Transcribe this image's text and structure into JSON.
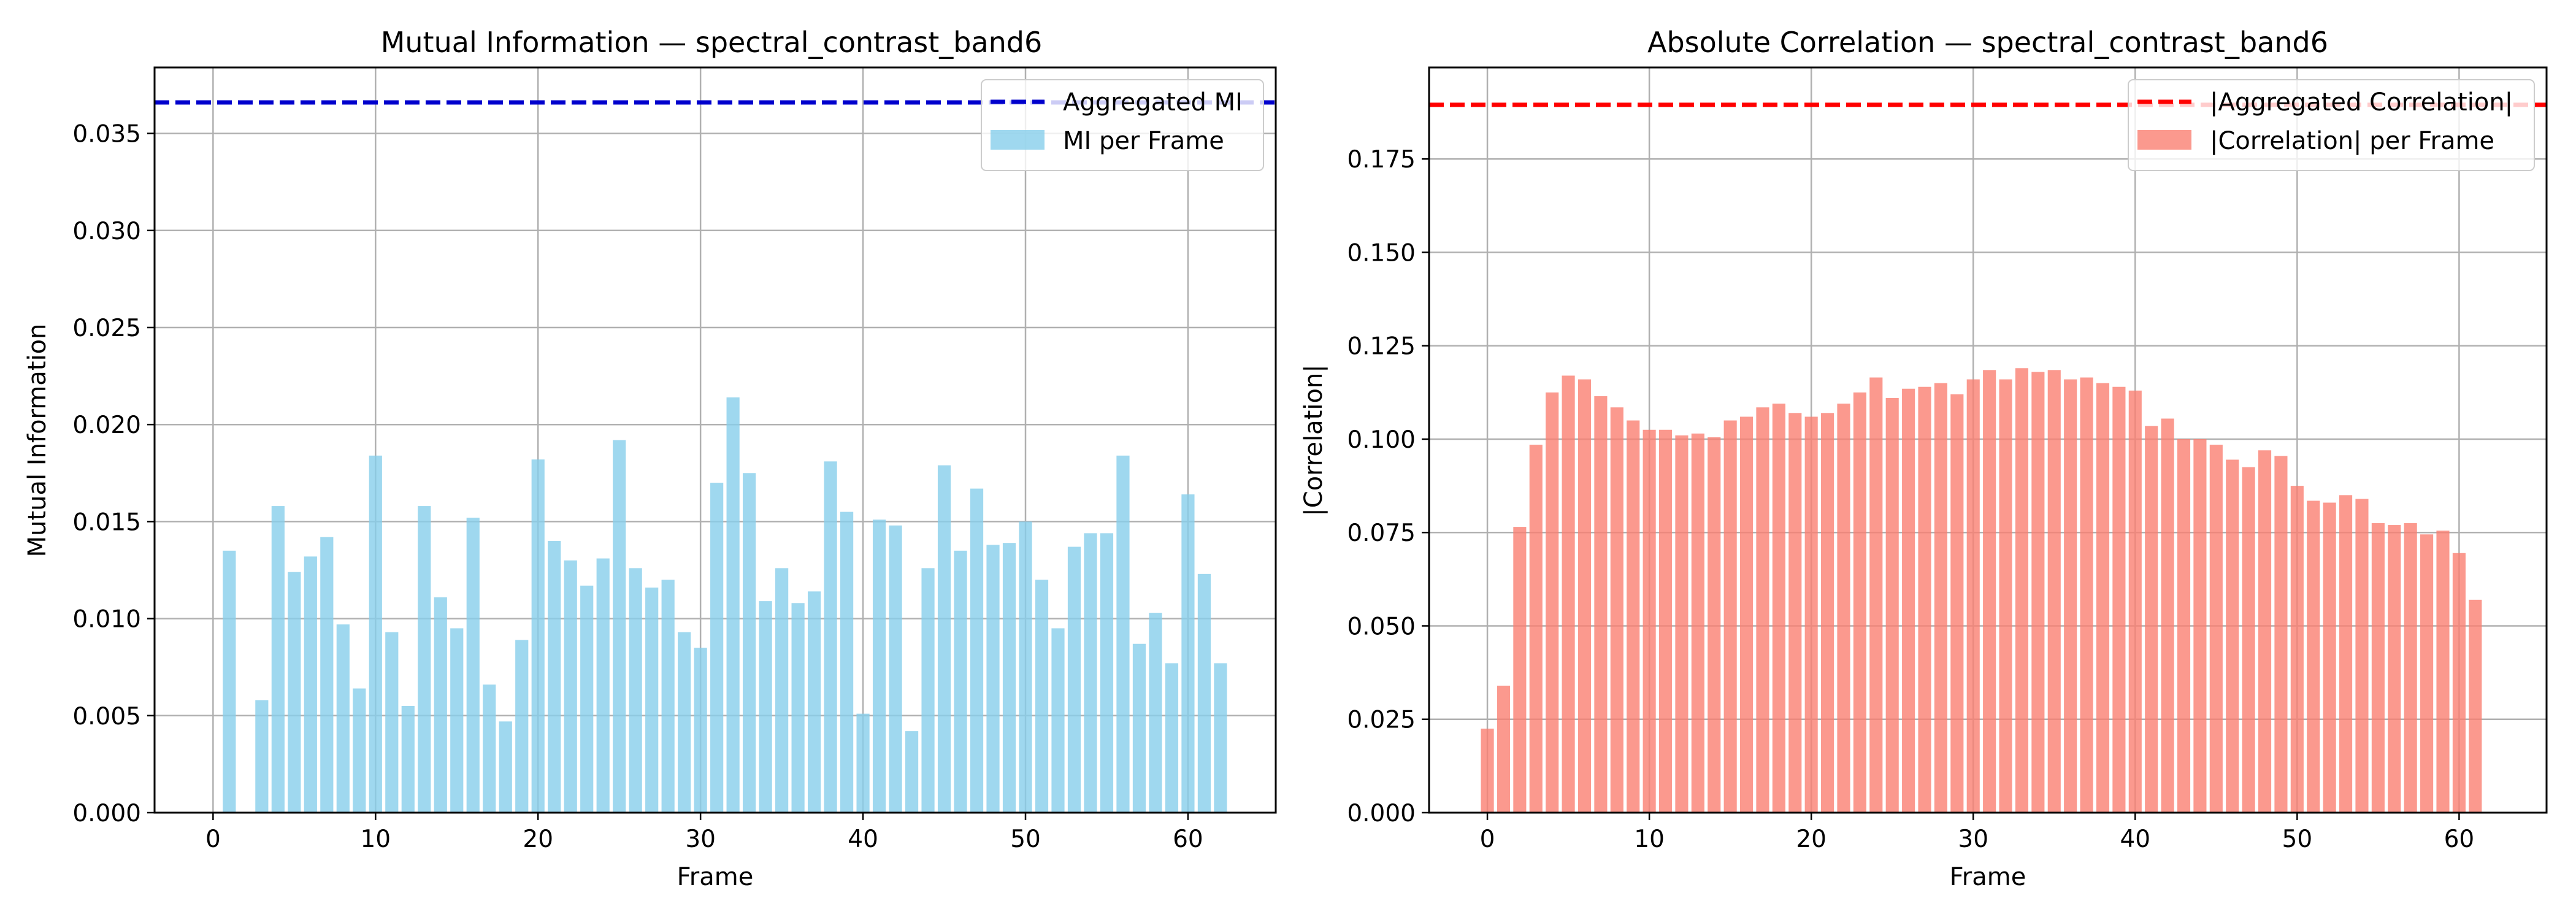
{
  "figure": {
    "background": "#ffffff"
  },
  "chart_data": [
    {
      "type": "bar",
      "title": "Mutual Information — spectral_contrast_band6",
      "xlabel": "Frame",
      "ylabel": "Mutual Information",
      "xlim": [
        -3.6,
        65.4
      ],
      "ylim": [
        0,
        0.0384
      ],
      "xticks": [
        0,
        10,
        20,
        30,
        40,
        50,
        60
      ],
      "xtick_labels": [
        "0",
        "10",
        "20",
        "30",
        "40",
        "50",
        "60"
      ],
      "yticks": [
        0,
        0.005,
        0.01,
        0.015,
        0.02,
        0.025,
        0.03,
        0.035
      ],
      "ytick_labels": [
        "0.000",
        "0.005",
        "0.010",
        "0.015",
        "0.020",
        "0.025",
        "0.030",
        "0.035"
      ],
      "grid": true,
      "legend_position": "upper right",
      "bar_color": "#87ceeb",
      "bar_series_name": "MI per Frame",
      "x": [
        0,
        1,
        2,
        3,
        4,
        5,
        6,
        7,
        8,
        9,
        10,
        11,
        12,
        13,
        14,
        15,
        16,
        17,
        18,
        19,
        20,
        21,
        22,
        23,
        24,
        25,
        26,
        27,
        28,
        29,
        30,
        31,
        32,
        33,
        34,
        35,
        36,
        37,
        38,
        39,
        40,
        41,
        42,
        43,
        44,
        45,
        46,
        47,
        48,
        49,
        50,
        51,
        52,
        53,
        54,
        55,
        56,
        57,
        58,
        59,
        60,
        61,
        62
      ],
      "values": [
        0,
        0.0135,
        0,
        0.0058,
        0.0158,
        0.0124,
        0.0132,
        0.0142,
        0.0097,
        0.0064,
        0.0184,
        0.0093,
        0.0055,
        0.0158,
        0.0111,
        0.0095,
        0.0152,
        0.0066,
        0.0047,
        0.0089,
        0.0182,
        0.014,
        0.013,
        0.0117,
        0.0131,
        0.0192,
        0.0126,
        0.0116,
        0.012,
        0.0093,
        0.0085,
        0.017,
        0.0214,
        0.0175,
        0.0109,
        0.0126,
        0.0108,
        0.0114,
        0.0181,
        0.0155,
        0.0051,
        0.0151,
        0.0148,
        0.0042,
        0.0126,
        0.0179,
        0.0135,
        0.0167,
        0.0138,
        0.0139,
        0.015,
        0.012,
        0.0095,
        0.0137,
        0.0144,
        0.0144,
        0.0184,
        0.0087,
        0.0103,
        0.0077,
        0.0164,
        0.0123,
        0.0077
      ],
      "reference_line": {
        "name": "Aggregated MI",
        "value": 0.0366,
        "color": "#0000cd",
        "style": "dashed"
      }
    },
    {
      "type": "bar",
      "title": "Absolute Correlation — spectral_contrast_band6",
      "xlabel": "Frame",
      "ylabel": "|Correlation|",
      "xlim": [
        -3.6,
        65.4
      ],
      "ylim": [
        0,
        0.1995
      ],
      "xticks": [
        0,
        10,
        20,
        30,
        40,
        50,
        60
      ],
      "xtick_labels": [
        "0",
        "10",
        "20",
        "30",
        "40",
        "50",
        "60"
      ],
      "yticks": [
        0,
        0.025,
        0.05,
        0.075,
        0.1,
        0.125,
        0.15,
        0.175
      ],
      "ytick_labels": [
        "0.000",
        "0.025",
        "0.050",
        "0.075",
        "0.100",
        "0.125",
        "0.150",
        "0.175"
      ],
      "grid": true,
      "legend_position": "upper right",
      "bar_color": "#fa8072",
      "bar_series_name": "|Correlation| per Frame",
      "x": [
        0,
        1,
        2,
        3,
        4,
        5,
        6,
        7,
        8,
        9,
        10,
        11,
        12,
        13,
        14,
        15,
        16,
        17,
        18,
        19,
        20,
        21,
        22,
        23,
        24,
        25,
        26,
        27,
        28,
        29,
        30,
        31,
        32,
        33,
        34,
        35,
        36,
        37,
        38,
        39,
        40,
        41,
        42,
        43,
        44,
        45,
        46,
        47,
        48,
        49,
        50,
        51,
        52,
        53,
        54,
        55,
        56,
        57,
        58,
        59,
        60,
        61,
        62
      ],
      "values": [
        0.0225,
        0.034,
        0.0765,
        0.0985,
        0.1125,
        0.117,
        0.116,
        0.1115,
        0.1085,
        0.105,
        0.1025,
        0.1025,
        0.101,
        0.1015,
        0.1005,
        0.105,
        0.106,
        0.1085,
        0.1095,
        0.107,
        0.106,
        0.107,
        0.1095,
        0.1125,
        0.1165,
        0.111,
        0.1135,
        0.114,
        0.115,
        0.112,
        0.116,
        0.1185,
        0.116,
        0.119,
        0.118,
        0.1185,
        0.116,
        0.1165,
        0.115,
        0.114,
        0.113,
        0.1035,
        0.1055,
        0.1,
        0.1,
        0.0985,
        0.0945,
        0.0925,
        0.097,
        0.0955,
        0.0875,
        0.0835,
        0.083,
        0.085,
        0.084,
        0.0775,
        0.077,
        0.0775,
        0.0745,
        0.0755,
        0.0695,
        0.057,
        0
      ],
      "reference_line": {
        "name": "|Aggregated Correlation|",
        "value": 0.1895,
        "color": "#ff0000",
        "style": "dashed"
      }
    }
  ]
}
